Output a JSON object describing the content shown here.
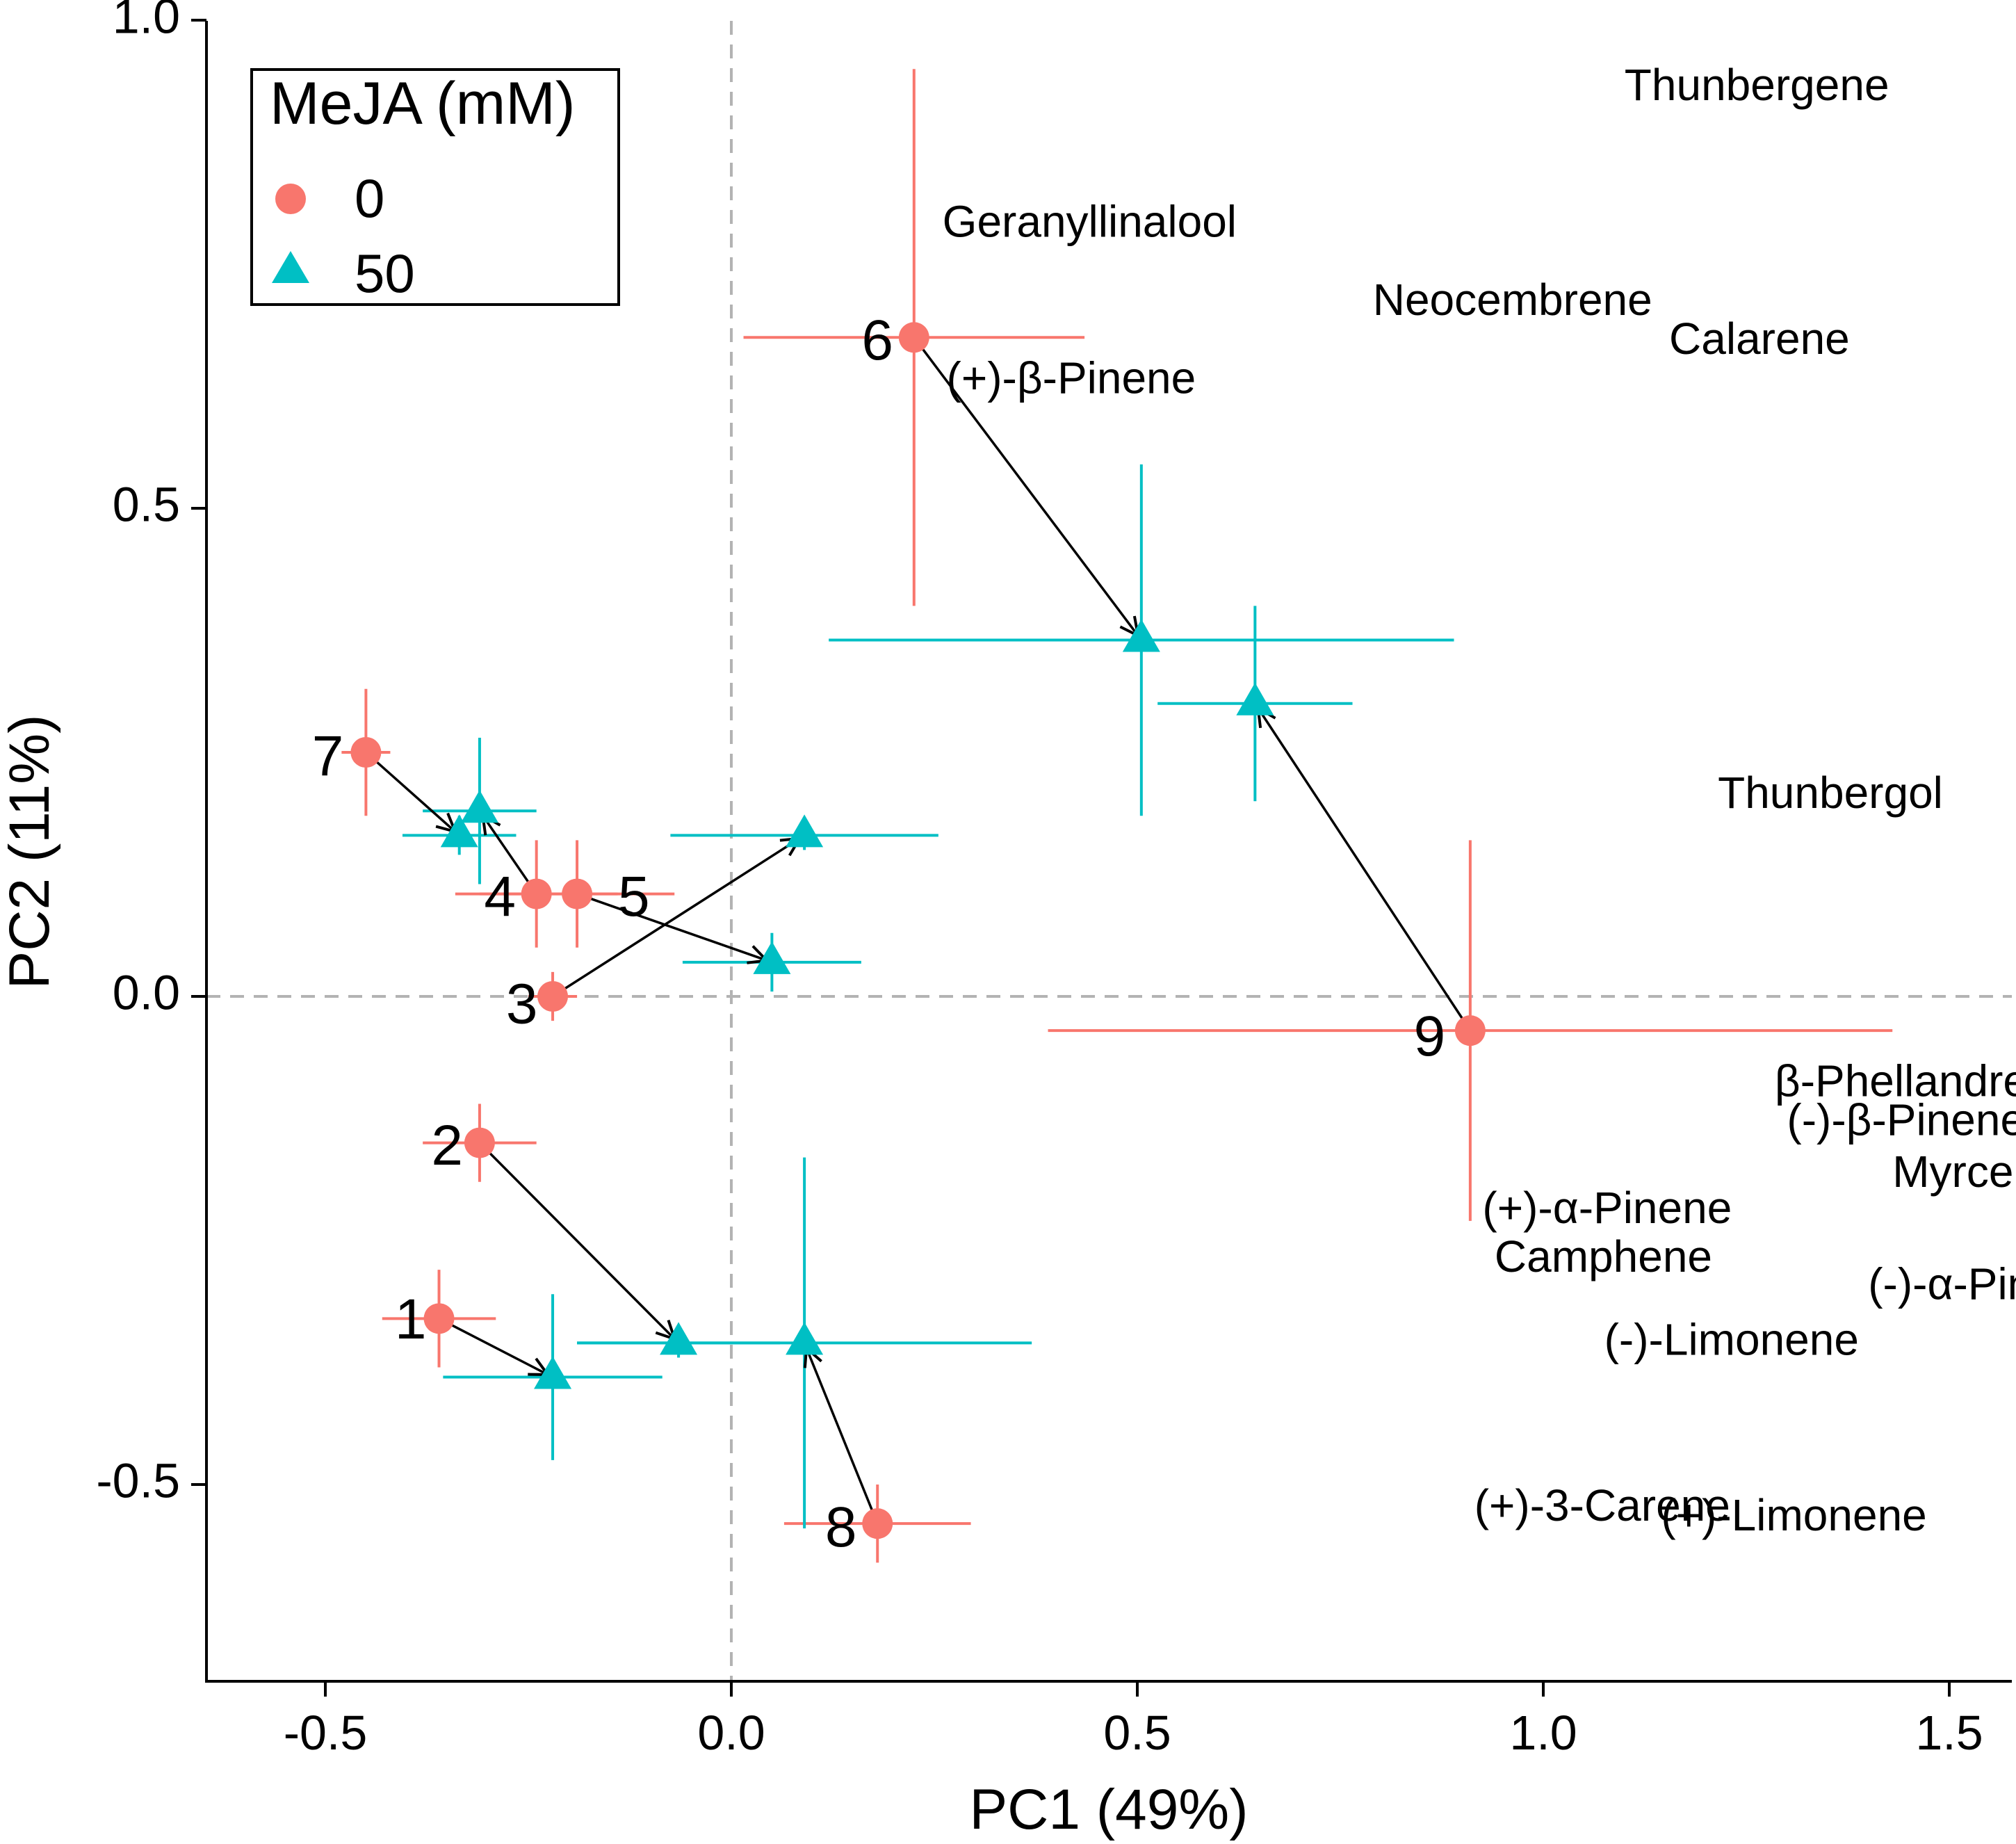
{
  "chart_data": {
    "type": "scatter",
    "title": "",
    "xlabel": "PC1 (49%)",
    "ylabel": "PC2 (11%)",
    "xlim": [
      -0.65,
      1.58
    ],
    "ylim": [
      -0.69,
      1.0
    ],
    "xticks": [
      -0.5,
      0.0,
      0.5,
      1.0,
      1.5
    ],
    "yticks": [
      -0.5,
      0.0,
      0.5,
      1.0
    ],
    "xtick_labels": [
      "-0.5",
      "0.0",
      "0.5",
      "1.0",
      "1.5"
    ],
    "ytick_labels": [
      "-0.5",
      "0.0",
      "0.5",
      "1.0"
    ],
    "reference_lines": {
      "x": 0.0,
      "y": 0.0
    },
    "legend": {
      "title": "MeJA (mM)",
      "position": "top-left",
      "entries": [
        {
          "label": "0",
          "shape": "circle",
          "color": "#F8766D"
        },
        {
          "label": "50",
          "shape": "triangle",
          "color": "#00BFC4"
        }
      ]
    },
    "series": [
      {
        "name": "0",
        "color": "#F8766D",
        "shape": "circle",
        "points": [
          {
            "id": "1",
            "x": -0.36,
            "y": -0.33,
            "xerr": 0.07,
            "yerr": 0.05
          },
          {
            "id": "2",
            "x": -0.31,
            "y": -0.15,
            "xerr": 0.07,
            "yerr": 0.04
          },
          {
            "id": "3",
            "x": -0.22,
            "y": 0.0,
            "xerr": 0.03,
            "yerr": 0.025
          },
          {
            "id": "4",
            "x": -0.24,
            "y": 0.105,
            "xerr": 0.1,
            "yerr": 0.055
          },
          {
            "id": "5",
            "x": -0.19,
            "y": 0.105,
            "xerr": 0.12,
            "yerr": 0.055
          },
          {
            "id": "6",
            "x": 0.225,
            "y": 0.675,
            "xerr": 0.21,
            "yerr": 0.275
          },
          {
            "id": "7",
            "x": -0.45,
            "y": 0.25,
            "xerr": 0.03,
            "yerr": 0.065
          },
          {
            "id": "8",
            "x": 0.18,
            "y": -0.54,
            "xerr": 0.115,
            "yerr": 0.04
          },
          {
            "id": "9",
            "x": 0.91,
            "y": -0.035,
            "xerr": 0.52,
            "yerr": 0.195
          }
        ]
      },
      {
        "name": "50",
        "color": "#00BFC4",
        "shape": "triangle",
        "points": [
          {
            "id": "1",
            "x": -0.22,
            "y": -0.39,
            "xerr": 0.135,
            "yerr": 0.085
          },
          {
            "id": "2",
            "x": -0.065,
            "y": -0.355,
            "xerr": 0.125,
            "yerr": 0.015
          },
          {
            "id": "3",
            "x": 0.09,
            "y": 0.165,
            "xerr": 0.165,
            "yerr": 0.015
          },
          {
            "id": "4",
            "x": -0.31,
            "y": 0.19,
            "xerr": 0.07,
            "yerr": 0.075
          },
          {
            "id": "5",
            "x": 0.05,
            "y": 0.035,
            "xerr": 0.11,
            "yerr": 0.03
          },
          {
            "id": "6",
            "x": 0.505,
            "y": 0.365,
            "xerr": 0.385,
            "yerr": 0.18
          },
          {
            "id": "7",
            "x": -0.335,
            "y": 0.165,
            "xerr": 0.07,
            "yerr": 0.02
          },
          {
            "id": "8",
            "x": 0.09,
            "y": -0.355,
            "xerr": 0.28,
            "yerr": 0.19
          },
          {
            "id": "9",
            "x": 0.645,
            "y": 0.3,
            "xerr": 0.12,
            "yerr": 0.1
          }
        ]
      }
    ],
    "point_labels": [
      {
        "text": "1",
        "x": -0.395,
        "y": -0.335
      },
      {
        "text": "2",
        "x": -0.35,
        "y": -0.157
      },
      {
        "text": "3",
        "x": -0.258,
        "y": -0.012
      },
      {
        "text": "4",
        "x": -0.285,
        "y": 0.098
      },
      {
        "text": "5",
        "x": -0.12,
        "y": 0.098
      },
      {
        "text": "6",
        "x": 0.18,
        "y": 0.668
      },
      {
        "text": "7",
        "x": -0.497,
        "y": 0.242
      },
      {
        "text": "8",
        "x": 0.135,
        "y": -0.548
      },
      {
        "text": "9",
        "x": 0.86,
        "y": -0.045
      }
    ],
    "variable_labels": [
      {
        "text": "Thunbergene",
        "x": 1.1,
        "y": 0.93
      },
      {
        "text": "Geranyllinalool",
        "x": 0.26,
        "y": 0.79
      },
      {
        "text": "Neocembrene",
        "x": 0.79,
        "y": 0.71
      },
      {
        "text": "Calarene",
        "x": 1.155,
        "y": 0.67
      },
      {
        "text": "(+)-β-Pinene",
        "x": 0.265,
        "y": 0.63
      },
      {
        "text": "Thunbergol",
        "x": 1.215,
        "y": 0.205
      },
      {
        "text": "β-Phellandrene",
        "x": 1.285,
        "y": -0.09
      },
      {
        "text": "(-)-β-Pinene",
        "x": 1.3,
        "y": -0.13
      },
      {
        "text": "Myrcene",
        "x": 1.43,
        "y": -0.183
      },
      {
        "text": "(+)-α-Pinene",
        "x": 0.925,
        "y": -0.22
      },
      {
        "text": "Camphene",
        "x": 0.94,
        "y": -0.27
      },
      {
        "text": "(-)-α-Pinene",
        "x": 1.4,
        "y": -0.298
      },
      {
        "text": "(-)-Limonene",
        "x": 1.075,
        "y": -0.355
      },
      {
        "text": "(+)-3-Carene",
        "x": 0.915,
        "y": -0.525
      },
      {
        "text": "(+)-Limonene",
        "x": 1.145,
        "y": -0.535
      }
    ],
    "arrows": [
      {
        "from": [
          -0.36,
          -0.33
        ],
        "to": [
          -0.22,
          -0.39
        ]
      },
      {
        "from": [
          -0.31,
          -0.15
        ],
        "to": [
          -0.065,
          -0.355
        ]
      },
      {
        "from": [
          -0.22,
          0.0
        ],
        "to": [
          0.09,
          0.165
        ]
      },
      {
        "from": [
          -0.24,
          0.105
        ],
        "to": [
          -0.31,
          0.19
        ]
      },
      {
        "from": [
          -0.19,
          0.105
        ],
        "to": [
          0.05,
          0.035
        ]
      },
      {
        "from": [
          0.225,
          0.675
        ],
        "to": [
          0.505,
          0.365
        ]
      },
      {
        "from": [
          -0.45,
          0.25
        ],
        "to": [
          -0.335,
          0.165
        ]
      },
      {
        "from": [
          0.18,
          -0.54
        ],
        "to": [
          0.09,
          -0.355
        ]
      },
      {
        "from": [
          0.91,
          -0.035
        ],
        "to": [
          0.645,
          0.3
        ]
      }
    ]
  }
}
